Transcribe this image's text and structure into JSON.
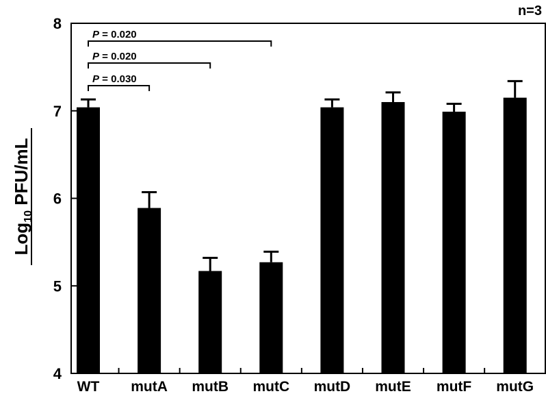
{
  "chart_data": {
    "type": "bar",
    "categories": [
      "WT",
      "mutA",
      "mutB",
      "mutC",
      "mutD",
      "mutE",
      "mutF",
      "mutG"
    ],
    "values": [
      7.04,
      5.89,
      5.17,
      5.27,
      7.04,
      7.1,
      6.99,
      7.15
    ],
    "errors": [
      0.09,
      0.18,
      0.15,
      0.12,
      0.09,
      0.11,
      0.09,
      0.19
    ],
    "ylabel": {
      "base": "Log",
      "sub": "10",
      "rest": " PFU/mL"
    },
    "ylim": [
      4,
      8
    ],
    "yticks": [
      4,
      5,
      6,
      7,
      8
    ],
    "grid": false,
    "sample_size": "n=3",
    "comparisons": [
      {
        "from": "WT",
        "to": "mutC",
        "p_symbol": "P",
        "p_value": " = 0.020"
      },
      {
        "from": "WT",
        "to": "mutB",
        "p_symbol": "P",
        "p_value": " = 0.020"
      },
      {
        "from": "WT",
        "to": "mutA",
        "p_symbol": "P",
        "p_value": " = 0.030"
      }
    ],
    "colors": {
      "bar": "#000000",
      "axis": "#000000"
    }
  }
}
